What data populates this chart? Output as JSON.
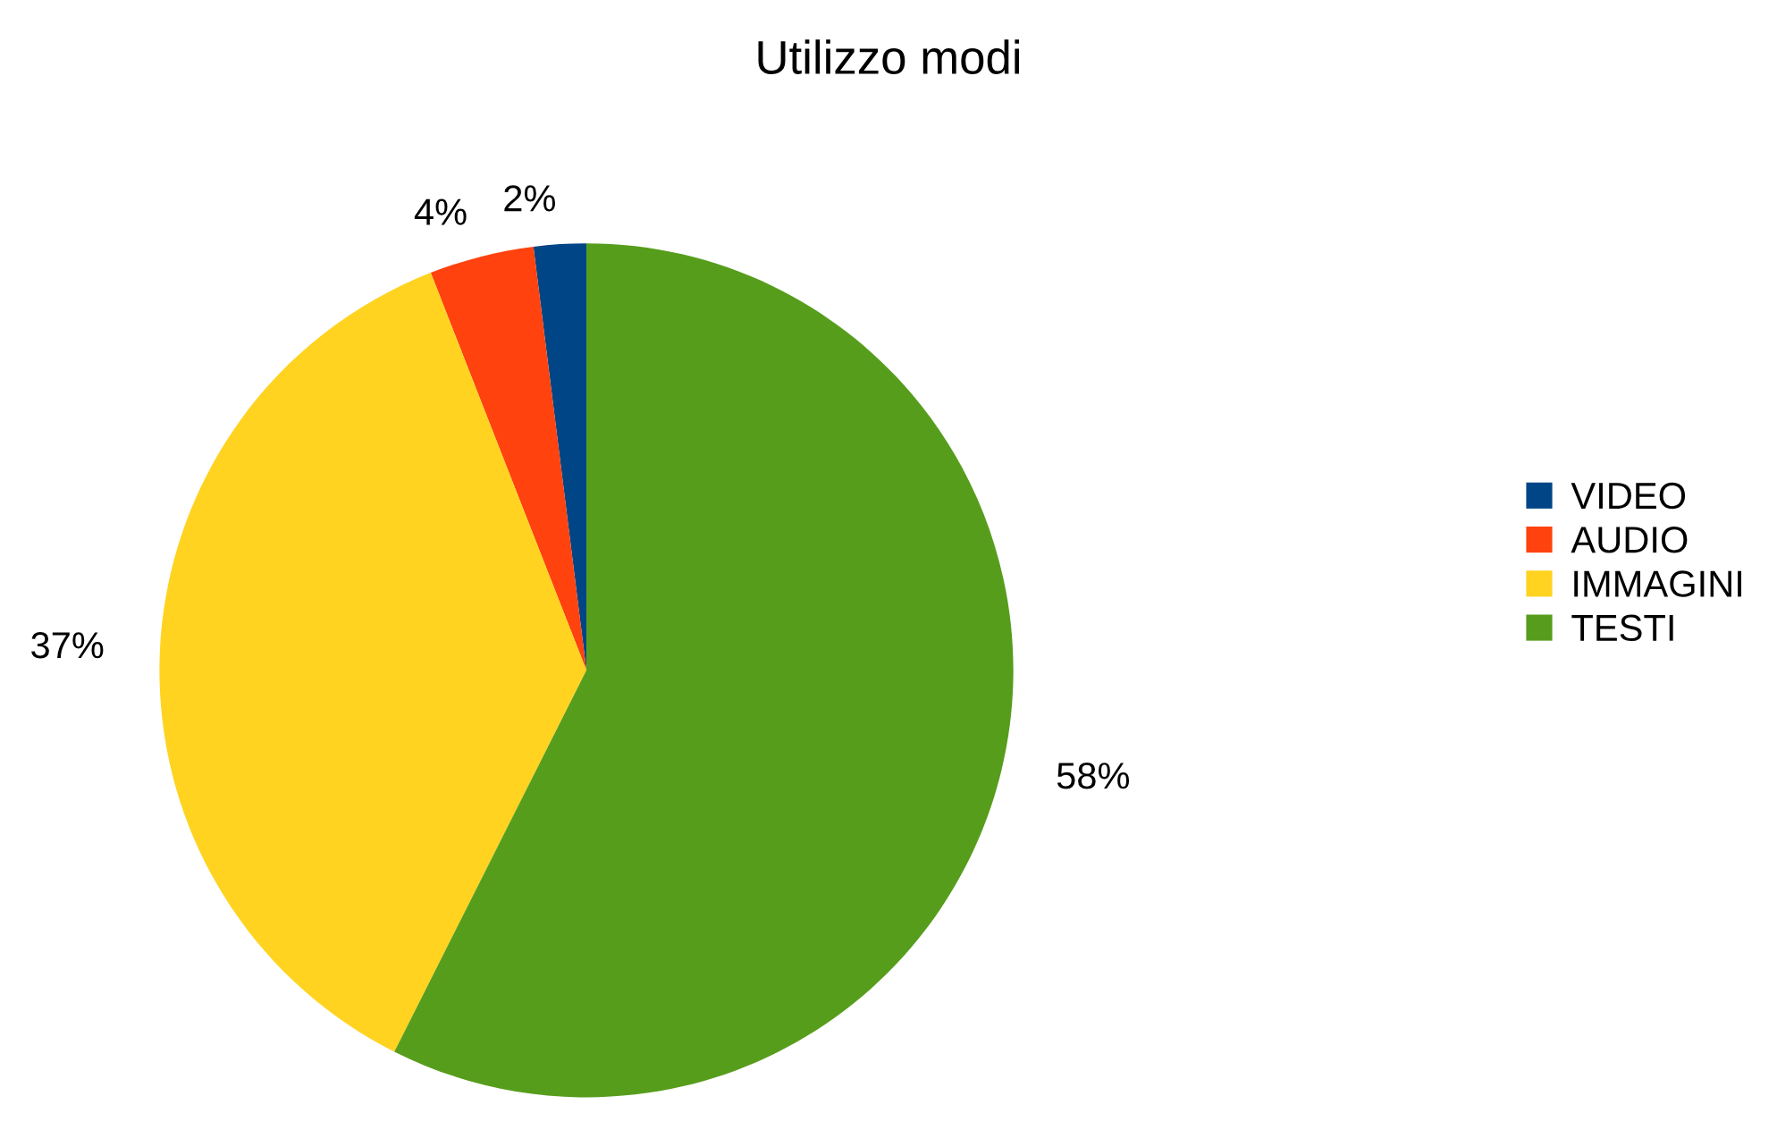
{
  "chart_data": {
    "type": "pie",
    "title": "Utilizzo modi",
    "categories": [
      "VIDEO",
      "AUDIO",
      "IMMAGINI",
      "TESTI"
    ],
    "values": [
      2,
      4,
      37,
      58
    ],
    "colors": [
      "#004586",
      "#ff420e",
      "#ffd320",
      "#579d1c"
    ],
    "value_labels": [
      "2%",
      "4%",
      "37%",
      "58%"
    ],
    "legend": "right"
  }
}
